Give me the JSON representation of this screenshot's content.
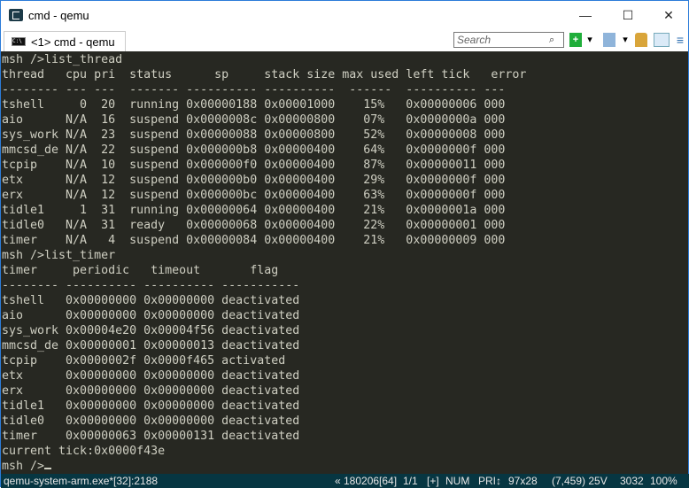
{
  "window": {
    "title": "cmd - qemu",
    "minimize": "—",
    "maximize": "☐",
    "close": "✕"
  },
  "tab": {
    "label": "<1> cmd - qemu",
    "icon": "console-icon"
  },
  "toolbar": {
    "search_placeholder": "Search",
    "new_console": "+",
    "menu_caret": "▾",
    "lock": "🔒"
  },
  "terminal": {
    "lines": [
      "msh />list_thread",
      "thread   cpu pri  status      sp     stack size max used left tick   error",
      "-------- --- ---  ------- ---------- ----------  ------  ---------- ---",
      "tshell     0  20  running 0x00000188 0x00001000    15%   0x00000006 000",
      "aio      N/A  16  suspend 0x0000008c 0x00000800    07%   0x0000000a 000",
      "sys_work N/A  23  suspend 0x00000088 0x00000800    52%   0x00000008 000",
      "mmcsd_de N/A  22  suspend 0x000000b8 0x00000400    64%   0x0000000f 000",
      "tcpip    N/A  10  suspend 0x000000f0 0x00000400    87%   0x00000011 000",
      "etx      N/A  12  suspend 0x000000b0 0x00000400    29%   0x0000000f 000",
      "erx      N/A  12  suspend 0x000000bc 0x00000400    63%   0x0000000f 000",
      "tidle1     1  31  running 0x00000064 0x00000400    21%   0x0000001a 000",
      "tidle0   N/A  31  ready   0x00000068 0x00000400    22%   0x00000001 000",
      "timer    N/A   4  suspend 0x00000084 0x00000400    21%   0x00000009 000",
      "msh />list_timer",
      "timer     periodic   timeout       flag",
      "-------- ---------- ---------- -----------",
      "tshell   0x00000000 0x00000000 deactivated",
      "aio      0x00000000 0x00000000 deactivated",
      "sys_work 0x00004e20 0x00004f56 deactivated",
      "mmcsd_de 0x00000001 0x00000013 deactivated",
      "tcpip    0x0000002f 0x0000f465 activated",
      "etx      0x00000000 0x00000000 deactivated",
      "erx      0x00000000 0x00000000 deactivated",
      "tidle1   0x00000000 0x00000000 deactivated",
      "tidle0   0x00000000 0x00000000 deactivated",
      "timer    0x00000063 0x00000131 deactivated",
      "current tick:0x0000f43e"
    ],
    "prompt": "msh />"
  },
  "statusbar": {
    "process": "qemu-system-arm.exe*[32]:2188",
    "buffer": "« 180206[64]",
    "console": "1/1",
    "plus": "[+]",
    "num": "NUM",
    "pri": "PRI↕",
    "size": "97x28",
    "cursor": "(7,459) 25V",
    "pid": "3032",
    "zoom": "100%"
  }
}
